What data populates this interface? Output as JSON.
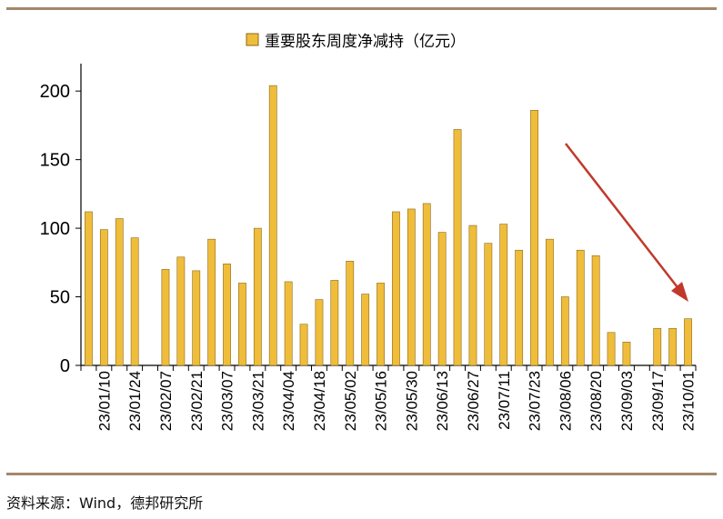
{
  "chart_data": {
    "type": "bar",
    "title": "",
    "xlabel": "",
    "ylabel": "",
    "ylim": [
      0,
      220
    ],
    "yticks": [
      0,
      50,
      100,
      150,
      200
    ],
    "grid": false,
    "legend_position": "top-center",
    "bar_color": "#f0bd3b",
    "bar_stroke": "#8a6a1c",
    "arrow_color": "#c0392b",
    "series": [
      {
        "name": "重要股东周度净减持（亿元）",
        "values": [
          112,
          99,
          107,
          93,
          0,
          70,
          79,
          69,
          92,
          74,
          60,
          100,
          204,
          61,
          30,
          48,
          62,
          76,
          52,
          60,
          112,
          114,
          118,
          97,
          172,
          102,
          89,
          103,
          84,
          186,
          92,
          50,
          84,
          80,
          24,
          17,
          0,
          27,
          27,
          34
        ]
      }
    ],
    "x_tick_labels": [
      "23/01/10",
      "23/01/24",
      "23/02/07",
      "23/02/21",
      "23/03/07",
      "23/03/21",
      "23/04/04",
      "23/04/18",
      "23/05/02",
      "23/05/16",
      "23/05/30",
      "23/06/13",
      "23/06/27",
      "23/07/11",
      "23/07/23",
      "23/08/06",
      "23/08/20",
      "23/09/03",
      "23/09/17",
      "23/10/01"
    ]
  },
  "legend": {
    "label": "重要股东周度净减持（亿元）"
  },
  "source": {
    "text": "资料来源：Wind，德邦研究所"
  }
}
